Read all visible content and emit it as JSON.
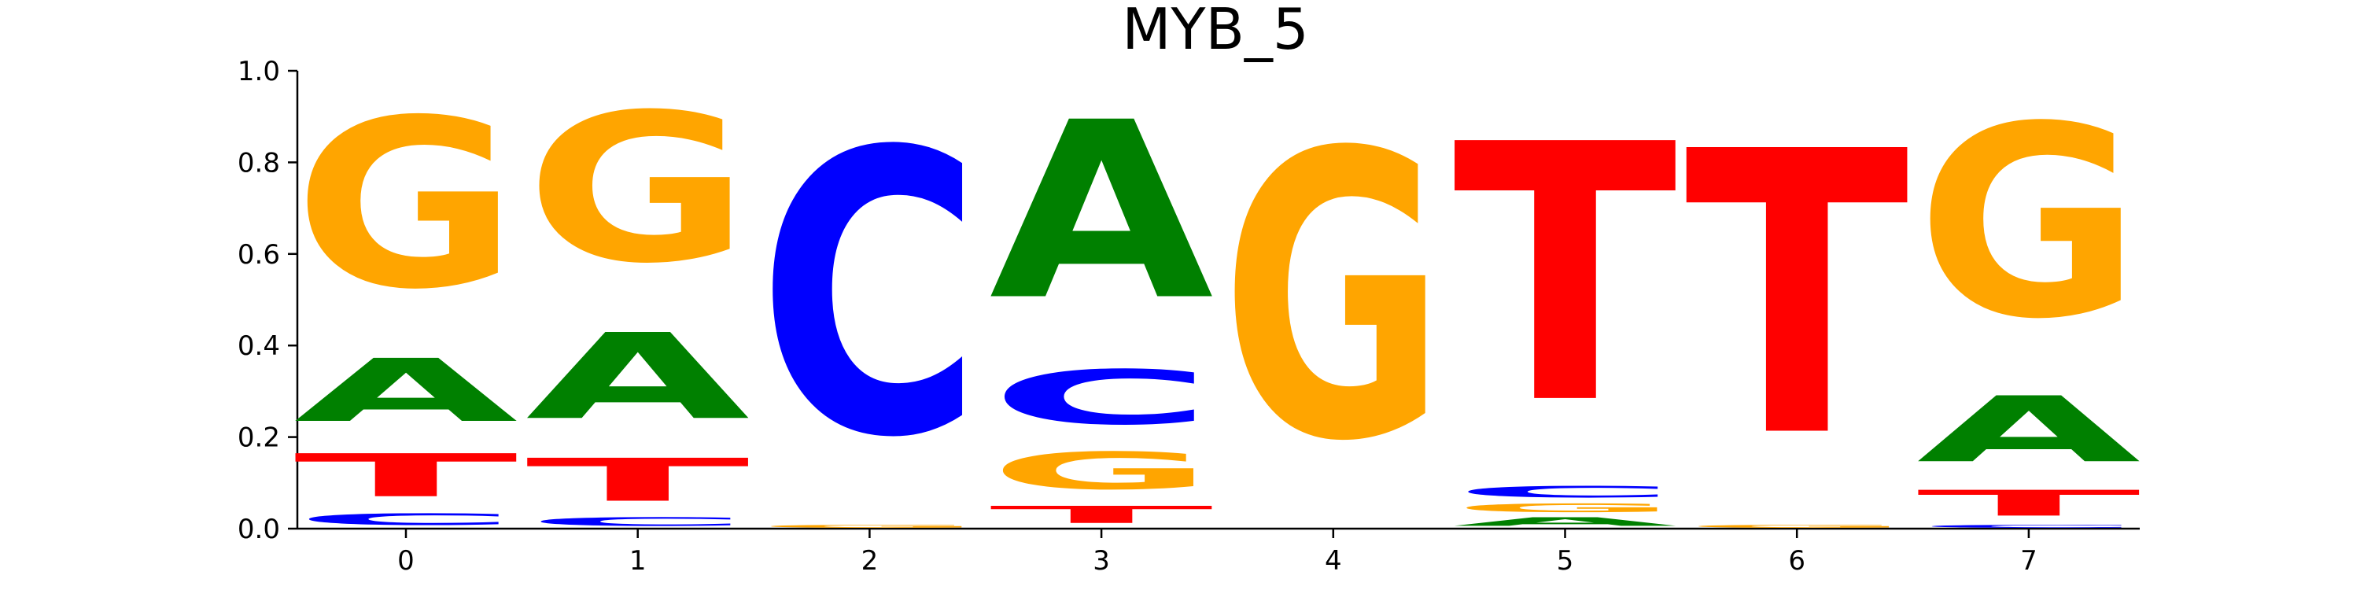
{
  "chart_data": {
    "type": "sequence-logo",
    "title": "MYB_5",
    "xlabel": "",
    "ylabel": "",
    "ylim": [
      0,
      1
    ],
    "yticks": [
      "0.0",
      "0.2",
      "0.4",
      "0.6",
      "0.8",
      "1.0"
    ],
    "ytick_values": [
      0,
      0.2,
      0.4,
      0.6,
      0.8,
      1.0
    ],
    "positions": [
      "0",
      "1",
      "2",
      "3",
      "4",
      "5",
      "6",
      "7"
    ],
    "colors": {
      "A": "#008000",
      "C": "#0000ff",
      "G": "#ffa500",
      "T": "#ff0000"
    },
    "letters": [
      [
        {
          "base": "C",
          "value": 0.04
        },
        {
          "base": "T",
          "value": 0.15
        },
        {
          "base": "A",
          "value": 0.22
        },
        {
          "base": "G",
          "value": 0.59
        }
      ],
      [
        {
          "base": "C",
          "value": 0.03
        },
        {
          "base": "T",
          "value": 0.15
        },
        {
          "base": "A",
          "value": 0.3
        },
        {
          "base": "G",
          "value": 0.52
        }
      ],
      [
        {
          "base": "G",
          "value": 0.01
        },
        {
          "base": "C",
          "value": 0.99
        }
      ],
      [
        {
          "base": "T",
          "value": 0.06
        },
        {
          "base": "G",
          "value": 0.13
        },
        {
          "base": "C",
          "value": 0.19
        },
        {
          "base": "A",
          "value": 0.62
        }
      ],
      [
        {
          "base": "G",
          "value": 1.0
        }
      ],
      [
        {
          "base": "A",
          "value": 0.03
        },
        {
          "base": "G",
          "value": 0.03
        },
        {
          "base": "C",
          "value": 0.04
        },
        {
          "base": "T",
          "value": 0.9
        }
      ],
      [
        {
          "base": "G",
          "value": 0.01
        },
        {
          "base": "T",
          "value": 0.99
        }
      ],
      [
        {
          "base": "C",
          "value": 0.01
        },
        {
          "base": "T",
          "value": 0.09
        },
        {
          "base": "A",
          "value": 0.23
        },
        {
          "base": "G",
          "value": 0.67
        }
      ]
    ]
  }
}
